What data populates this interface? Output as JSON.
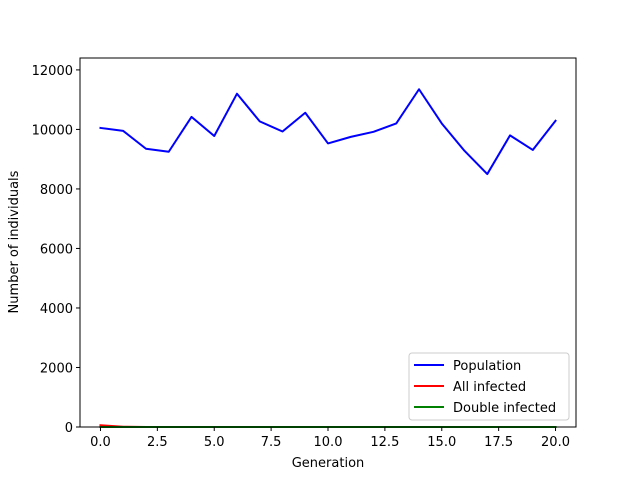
{
  "chart_data": {
    "type": "line",
    "title": "",
    "xlabel": "Generation",
    "ylabel": "Number of individuals",
    "xlim": [
      -0.9,
      20.9
    ],
    "ylim": [
      0,
      12400
    ],
    "x_ticks": [
      0.0,
      2.5,
      5.0,
      7.5,
      10.0,
      12.5,
      15.0,
      17.5,
      20.0
    ],
    "x_tick_labels": [
      "0.0",
      "2.5",
      "5.0",
      "7.5",
      "10.0",
      "12.5",
      "15.0",
      "17.5",
      "20.0"
    ],
    "y_ticks": [
      0,
      2000,
      4000,
      6000,
      8000,
      10000,
      12000
    ],
    "y_tick_labels": [
      "0",
      "2000",
      "4000",
      "6000",
      "8000",
      "10000",
      "12000"
    ],
    "grid": false,
    "legend_position": "lower-right",
    "x": [
      0,
      1,
      2,
      3,
      4,
      5,
      6,
      7,
      8,
      9,
      10,
      11,
      12,
      13,
      14,
      15,
      16,
      17,
      18,
      19,
      20
    ],
    "series": [
      {
        "name": "Population",
        "color": "#0000ff",
        "values": [
          10050,
          9950,
          9350,
          9250,
          10420,
          9780,
          11200,
          10270,
          9930,
          10560,
          9530,
          9750,
          9920,
          10200,
          11350,
          10200,
          9280,
          8500,
          9800,
          9310,
          10290
        ]
      },
      {
        "name": "All infected",
        "color": "#ff0000",
        "values": [
          60,
          10,
          0,
          0,
          0,
          0,
          0,
          0,
          0,
          0,
          0,
          0,
          0,
          0,
          0,
          0,
          0,
          0,
          0,
          0,
          0
        ]
      },
      {
        "name": "Double infected",
        "color": "#008000",
        "values": [
          0,
          0,
          0,
          0,
          0,
          0,
          0,
          0,
          0,
          0,
          0,
          0,
          0,
          0,
          0,
          0,
          0,
          0,
          0,
          0,
          0
        ]
      }
    ]
  }
}
